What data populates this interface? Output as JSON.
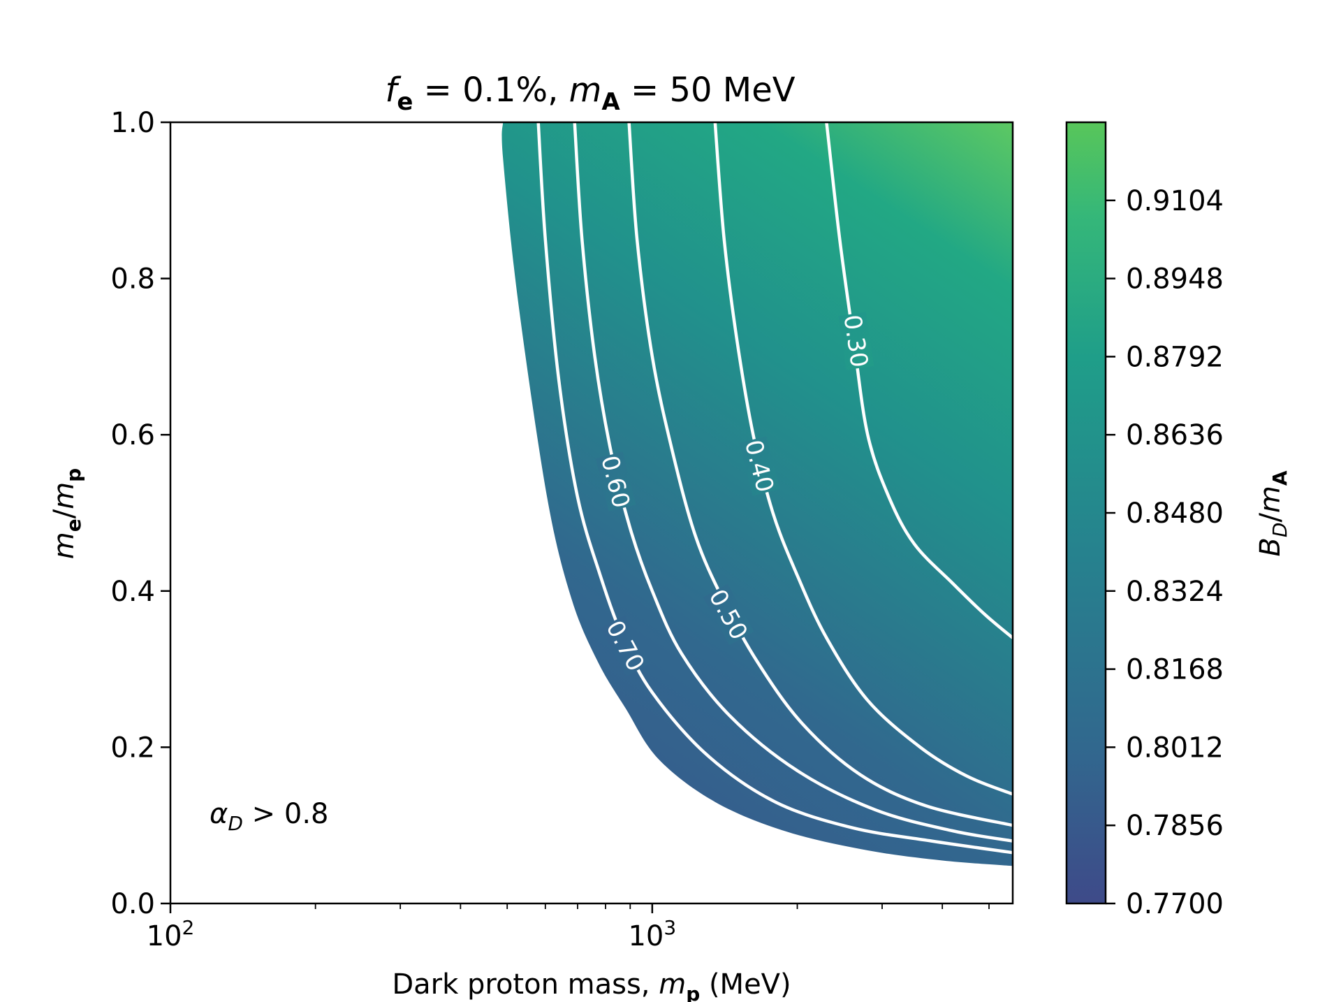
{
  "chart_data": {
    "type": "contour",
    "title_parts": {
      "f": "f",
      "f_sub": "e",
      "eq1": " = 0.1%, ",
      "m": "m",
      "m_sub": "A",
      "eq2": " = 50 MeV"
    },
    "xlabel_parts": {
      "text": "Dark proton mass, ",
      "m": "m",
      "m_sub": "p",
      "unit": " (MeV)"
    },
    "ylabel_parts": {
      "m1": "m",
      "sub1": "e",
      "slash": "/",
      "m2": "m",
      "sub2": "p"
    },
    "colorbar_label_parts": {
      "b": "B",
      "b_sub": "D",
      "slash": "/",
      "m": "m",
      "m_sub": "A"
    },
    "annotation_parts": {
      "alpha": "α",
      "alpha_sub": "D",
      "rest": " > 0.8"
    },
    "xscale": "log",
    "xlim": [
      100,
      5600
    ],
    "ylim": [
      0,
      1.0
    ],
    "x_major_ticks": [
      100,
      1000
    ],
    "x_major_tick_labels": [
      {
        "base": "10",
        "exp": "2"
      },
      {
        "base": "10",
        "exp": "3"
      }
    ],
    "x_minor_ticks": [
      200,
      300,
      400,
      500,
      600,
      700,
      800,
      900,
      2000,
      3000,
      4000,
      5000
    ],
    "y_ticks": [
      0.0,
      0.2,
      0.4,
      0.6,
      0.8,
      1.0
    ],
    "y_tick_labels": [
      "0.0",
      "0.2",
      "0.4",
      "0.6",
      "0.8",
      "1.0"
    ],
    "colorbar": {
      "range": [
        0.77,
        0.926
      ],
      "ticks": [
        0.77,
        0.7856,
        0.8012,
        0.8168,
        0.8324,
        0.848,
        0.8636,
        0.8792,
        0.8948,
        0.9104
      ],
      "tick_labels": [
        "0.7700",
        "0.7856",
        "0.8012",
        "0.8168",
        "0.8324",
        "0.8480",
        "0.8636",
        "0.8792",
        "0.8948",
        "0.9104"
      ],
      "colors": [
        "#3e4a89",
        "#31688e",
        "#26828e",
        "#1f9e89",
        "#35b779",
        "#58c65a"
      ]
    },
    "region_boundary": {
      "note": "alpha_D = 0.8 boundary of the shaded region",
      "points": [
        [
          490,
          1.0
        ],
        [
          490,
          0.955
        ],
        [
          527,
          0.77
        ],
        [
          605,
          0.52
        ],
        [
          680,
          0.39
        ],
        [
          770,
          0.31
        ],
        [
          880,
          0.25
        ],
        [
          1030,
          0.185
        ],
        [
          1350,
          0.13
        ],
        [
          1900,
          0.092
        ],
        [
          2800,
          0.068
        ],
        [
          4000,
          0.055
        ],
        [
          5600,
          0.048
        ]
      ]
    },
    "contours": [
      {
        "level": "0.70",
        "points": [
          [
            580,
            1.0
          ],
          [
            600,
            0.85
          ],
          [
            640,
            0.67
          ],
          [
            700,
            0.52
          ],
          [
            780,
            0.42
          ],
          [
            870,
            0.34
          ],
          [
            1000,
            0.27
          ],
          [
            1300,
            0.19
          ],
          [
            1800,
            0.13
          ],
          [
            2600,
            0.097
          ],
          [
            3800,
            0.08
          ],
          [
            5600,
            0.065
          ]
        ],
        "label_at": [
          880,
          0.33
        ]
      },
      {
        "level": "0.60",
        "points": [
          [
            690,
            1.0
          ],
          [
            715,
            0.85
          ],
          [
            760,
            0.7
          ],
          [
            820,
            0.58
          ],
          [
            900,
            0.48
          ],
          [
            1000,
            0.4
          ],
          [
            1150,
            0.32
          ],
          [
            1450,
            0.24
          ],
          [
            2000,
            0.17
          ],
          [
            2900,
            0.12
          ],
          [
            4200,
            0.093
          ],
          [
            5600,
            0.08
          ]
        ],
        "label_at": [
          840,
          0.54
        ]
      },
      {
        "level": "0.50",
        "points": [
          [
            895,
            1.0
          ],
          [
            930,
            0.85
          ],
          [
            1000,
            0.7
          ],
          [
            1100,
            0.58
          ],
          [
            1230,
            0.47
          ],
          [
            1400,
            0.39
          ],
          [
            1650,
            0.31
          ],
          [
            2050,
            0.23
          ],
          [
            2700,
            0.165
          ],
          [
            3700,
            0.125
          ],
          [
            5600,
            0.1
          ]
        ],
        "label_at": [
          1440,
          0.37
        ]
      },
      {
        "level": "0.40",
        "points": [
          [
            1350,
            1.0
          ],
          [
            1410,
            0.85
          ],
          [
            1500,
            0.72
          ],
          [
            1620,
            0.6
          ],
          [
            1780,
            0.5
          ],
          [
            2000,
            0.42
          ],
          [
            2300,
            0.34
          ],
          [
            2800,
            0.26
          ],
          [
            3600,
            0.2
          ],
          [
            4500,
            0.163
          ],
          [
            5600,
            0.14
          ]
        ],
        "label_at": [
          1670,
          0.56
        ]
      },
      {
        "level": "0.30",
        "points": [
          [
            2300,
            1.0
          ],
          [
            2450,
            0.85
          ],
          [
            2620,
            0.72
          ],
          [
            2800,
            0.6
          ],
          [
            3100,
            0.52
          ],
          [
            3500,
            0.46
          ],
          [
            4200,
            0.41
          ],
          [
            4900,
            0.37
          ],
          [
            5600,
            0.34
          ]
        ],
        "label_at": [
          2650,
          0.72
        ]
      }
    ]
  }
}
